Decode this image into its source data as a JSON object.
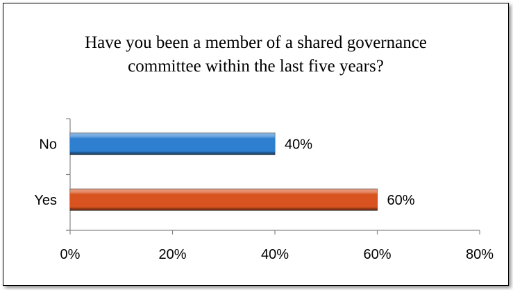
{
  "chart_data": {
    "type": "bar",
    "orientation": "horizontal",
    "title": "Have you been a member of a shared governance\ncommittee within the last five  years?",
    "categories": [
      "No",
      "Yes"
    ],
    "values": [
      0.4,
      0.6
    ],
    "data_labels": [
      "40%",
      "60%"
    ],
    "bar_colors": [
      "#2e7fcf",
      "#d8531f"
    ],
    "xlim": [
      0,
      0.8
    ],
    "x_ticks": [
      0,
      0.2,
      0.4,
      0.6,
      0.8
    ],
    "x_tick_labels": [
      "0%",
      "20%",
      "40%",
      "60%",
      "80%"
    ],
    "grid": false,
    "legend": "none"
  }
}
